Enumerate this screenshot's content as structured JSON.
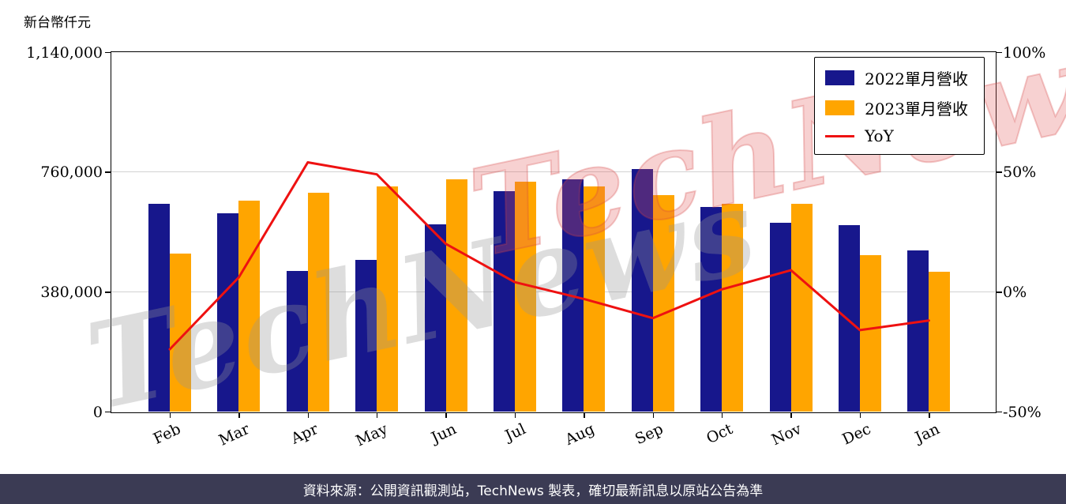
{
  "page": {
    "y_axis_title": "新台幣仟元",
    "watermark": "TechNews",
    "footer": "資料來源：公開資訊觀測站，TechNews 製表，確切最新訊息以原站公告為準"
  },
  "chart_data": {
    "type": "bar",
    "title": "",
    "categories": [
      "Feb",
      "Mar",
      "Apr",
      "May",
      "Jun",
      "Jul",
      "Aug",
      "Sep",
      "Oct",
      "Nov",
      "Dec",
      "Jan"
    ],
    "series": [
      {
        "name": "2022單月營收",
        "type": "bar",
        "axis": "left",
        "color": "#17178C",
        "values": [
          660000,
          630000,
          445000,
          480000,
          595000,
          698000,
          737000,
          770000,
          650000,
          600000,
          592000,
          510000
        ]
      },
      {
        "name": "2023單月營收",
        "type": "bar",
        "axis": "left",
        "color": "#FFA500",
        "values": [
          500000,
          668000,
          694000,
          715000,
          737000,
          730000,
          715000,
          687000,
          658000,
          658000,
          497000,
          443000
        ]
      },
      {
        "name": "YoY",
        "type": "line",
        "axis": "right",
        "color": "#EE1111",
        "values": [
          -24,
          6,
          54,
          49,
          20,
          4,
          -3,
          -11,
          1,
          9,
          -16,
          -12
        ]
      }
    ],
    "left_axis": {
      "title": "新台幣仟元",
      "unit": "NTD thousand",
      "min": 0,
      "max": 1140000,
      "ticks": [
        0,
        380000,
        760000,
        1140000
      ],
      "labels": [
        "0",
        "380,000",
        "760,000",
        "1,140,000"
      ]
    },
    "right_axis": {
      "title": "YoY",
      "unit": "%",
      "min": -50,
      "max": 100,
      "ticks": [
        -50,
        0,
        50,
        100
      ],
      "labels": [
        "-50%",
        "0%",
        "50%",
        "100%"
      ]
    },
    "grid": true,
    "legend_position": "top-right"
  }
}
